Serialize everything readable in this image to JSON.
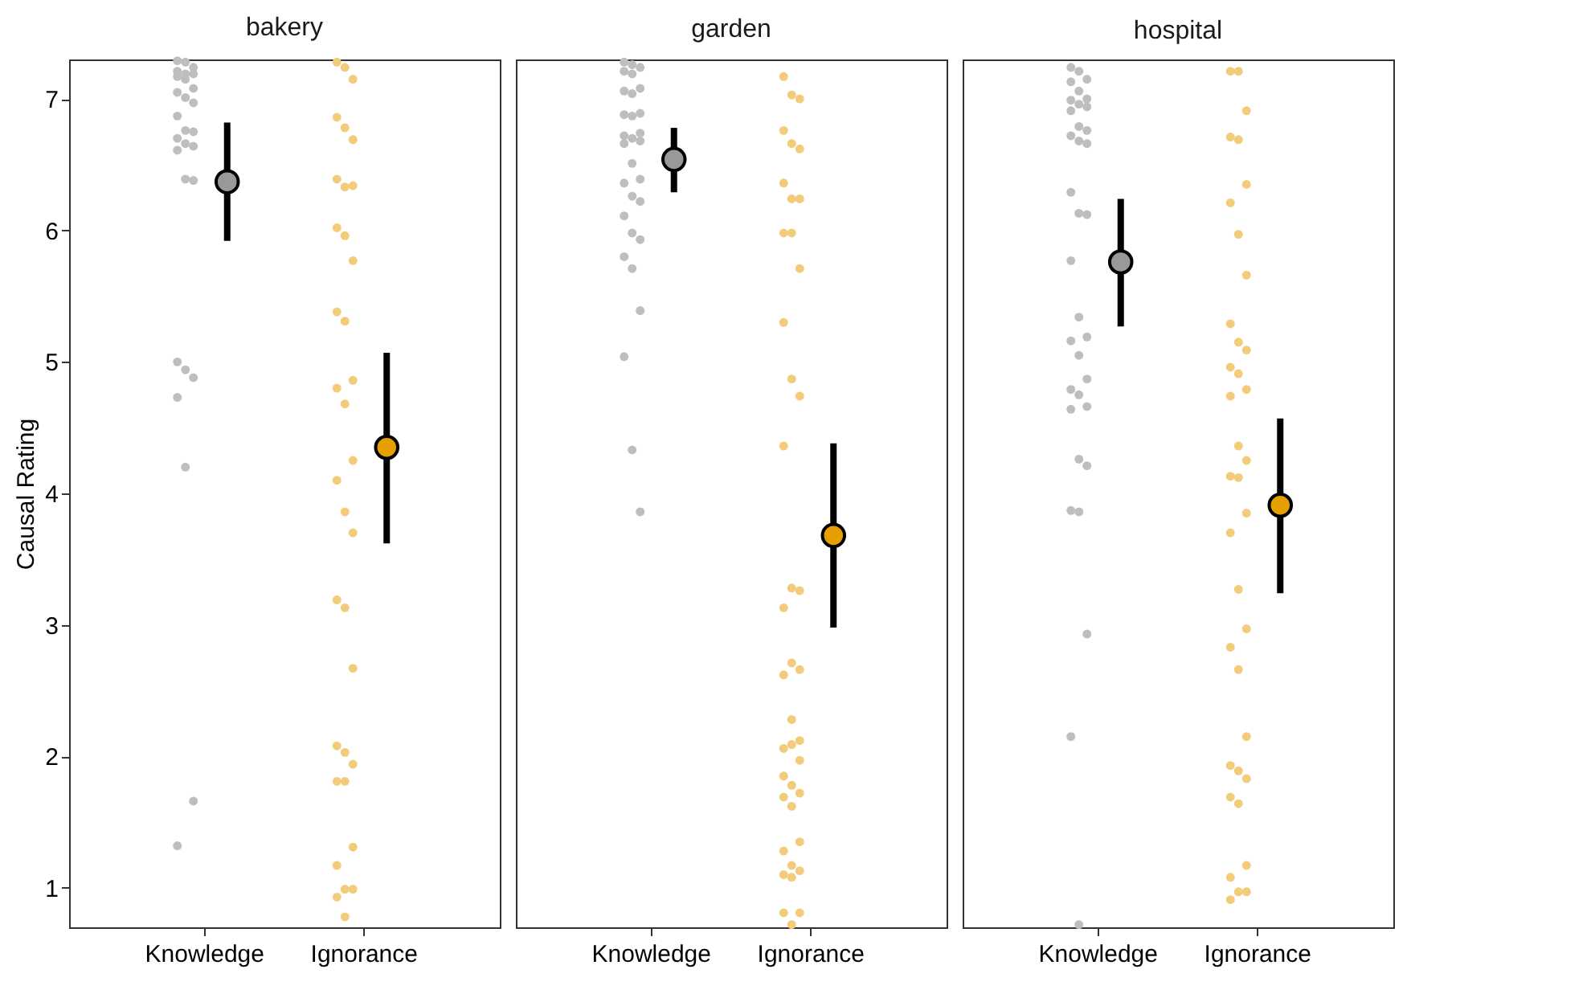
{
  "chart_data": [
    {
      "type": "scatter",
      "title": "bakery",
      "ylabel": "Causal Rating",
      "categories": [
        "Knowledge",
        "Ignorance"
      ],
      "ylim": [
        0.7,
        7.3
      ],
      "yticks": [
        1,
        2,
        3,
        4,
        5,
        6,
        7
      ],
      "grid": false,
      "marker": "circle",
      "series": [
        {
          "color": "#bebebe",
          "x": [
            "Knowledge",
            "Knowledge",
            "Knowledge",
            "Knowledge",
            "Knowledge",
            "Knowledge",
            "Knowledge",
            "Knowledge",
            "Knowledge",
            "Knowledge",
            "Knowledge",
            "Knowledge",
            "Knowledge",
            "Knowledge",
            "Knowledge",
            "Knowledge",
            "Knowledge",
            "Knowledge",
            "Knowledge",
            "Knowledge",
            "Knowledge",
            "Knowledge",
            "Knowledge",
            "Knowledge",
            "Knowledge",
            "Knowledge",
            "Knowledge",
            "Knowledge"
          ],
          "values": [
            7.29,
            7.28,
            7.24,
            7.21,
            7.19,
            7.19,
            7.17,
            7.15,
            7.08,
            7.05,
            7.01,
            6.97,
            6.87,
            6.76,
            6.75,
            6.7,
            6.66,
            6.64,
            6.61,
            6.39,
            6.38,
            5.0,
            4.94,
            4.88,
            4.73,
            4.2,
            1.66,
            1.32
          ]
        },
        {
          "color": "#f2cc7a",
          "x": [
            "Ignorance",
            "Ignorance",
            "Ignorance",
            "Ignorance",
            "Ignorance",
            "Ignorance",
            "Ignorance",
            "Ignorance",
            "Ignorance",
            "Ignorance",
            "Ignorance",
            "Ignorance",
            "Ignorance",
            "Ignorance",
            "Ignorance",
            "Ignorance",
            "Ignorance",
            "Ignorance",
            "Ignorance",
            "Ignorance",
            "Ignorance",
            "Ignorance",
            "Ignorance",
            "Ignorance",
            "Ignorance",
            "Ignorance",
            "Ignorance",
            "Ignorance",
            "Ignorance",
            "Ignorance",
            "Ignorance",
            "Ignorance",
            "Ignorance",
            "Ignorance",
            "Ignorance"
          ],
          "values": [
            7.28,
            7.24,
            7.15,
            6.86,
            6.78,
            6.69,
            6.39,
            6.33,
            6.34,
            6.02,
            5.96,
            5.77,
            5.38,
            5.31,
            4.86,
            4.8,
            4.68,
            4.25,
            4.1,
            3.86,
            3.7,
            3.19,
            3.13,
            2.67,
            2.08,
            2.03,
            1.94,
            1.81,
            1.81,
            1.31,
            1.17,
            0.99,
            0.99,
            0.93,
            0.78
          ]
        },
        {
          "color": "#999999",
          "x": [
            "Knowledge"
          ],
          "values": [
            6.37
          ],
          "errors": [
            [
              5.92,
              6.82
            ]
          ]
        },
        {
          "color": "#e69f00",
          "x": [
            "Ignorance"
          ],
          "values": [
            4.35
          ],
          "errors": [
            [
              3.62,
              5.07
            ]
          ]
        }
      ]
    },
    {
      "type": "scatter",
      "title": "garden",
      "categories": [
        "Knowledge",
        "Ignorance"
      ],
      "ylim": [
        0.7,
        7.3
      ],
      "yticks": [
        1,
        2,
        3,
        4,
        5,
        6,
        7
      ],
      "tick_labels": "x",
      "grid": false,
      "marker": "circle",
      "series": [
        {
          "color": "#bebebe",
          "x": [
            "Knowledge",
            "Knowledge",
            "Knowledge",
            "Knowledge",
            "Knowledge",
            "Knowledge",
            "Knowledge",
            "Knowledge",
            "Knowledge",
            "Knowledge",
            "Knowledge",
            "Knowledge",
            "Knowledge",
            "Knowledge",
            "Knowledge",
            "Knowledge",
            "Knowledge",
            "Knowledge",
            "Knowledge",
            "Knowledge",
            "Knowledge",
            "Knowledge",
            "Knowledge",
            "Knowledge",
            "Knowledge",
            "Knowledge",
            "Knowledge",
            "Knowledge",
            "Knowledge",
            "Knowledge"
          ],
          "values": [
            7.28,
            7.26,
            7.24,
            7.21,
            7.19,
            7.08,
            7.06,
            7.04,
            6.89,
            6.88,
            6.87,
            6.74,
            6.72,
            6.7,
            6.68,
            6.66,
            6.51,
            6.39,
            6.36,
            6.26,
            6.22,
            6.11,
            5.98,
            5.93,
            5.8,
            5.71,
            5.39,
            5.04,
            4.33,
            3.86
          ]
        },
        {
          "color": "#f2cc7a",
          "x": [
            "Ignorance",
            "Ignorance",
            "Ignorance",
            "Ignorance",
            "Ignorance",
            "Ignorance",
            "Ignorance",
            "Ignorance",
            "Ignorance",
            "Ignorance",
            "Ignorance",
            "Ignorance",
            "Ignorance",
            "Ignorance",
            "Ignorance",
            "Ignorance",
            "Ignorance",
            "Ignorance",
            "Ignorance",
            "Ignorance",
            "Ignorance",
            "Ignorance",
            "Ignorance",
            "Ignorance",
            "Ignorance",
            "Ignorance",
            "Ignorance",
            "Ignorance",
            "Ignorance",
            "Ignorance",
            "Ignorance",
            "Ignorance",
            "Ignorance",
            "Ignorance",
            "Ignorance",
            "Ignorance",
            "Ignorance",
            "Ignorance",
            "Ignorance",
            "Ignorance",
            "Ignorance"
          ],
          "values": [
            7.17,
            7.03,
            7.0,
            6.76,
            6.66,
            6.62,
            6.36,
            6.24,
            6.24,
            5.98,
            5.98,
            5.71,
            5.3,
            4.87,
            4.74,
            4.36,
            3.28,
            3.26,
            3.13,
            2.71,
            2.66,
            2.62,
            2.28,
            2.12,
            2.06,
            2.09,
            1.97,
            1.85,
            1.78,
            1.72,
            1.69,
            1.62,
            1.35,
            1.28,
            1.17,
            1.13,
            1.1,
            1.08,
            0.81,
            0.81,
            0.72
          ]
        },
        {
          "color": "#999999",
          "x": [
            "Knowledge"
          ],
          "values": [
            6.54
          ],
          "errors": [
            [
              6.29,
              6.78
            ]
          ]
        },
        {
          "color": "#e69f00",
          "x": [
            "Ignorance"
          ],
          "values": [
            3.68
          ],
          "errors": [
            [
              2.98,
              4.38
            ]
          ]
        }
      ]
    },
    {
      "type": "scatter",
      "title": "hospital",
      "categories": [
        "Knowledge",
        "Ignorance"
      ],
      "ylim": [
        0.7,
        7.3
      ],
      "yticks": [
        1,
        2,
        3,
        4,
        5,
        6,
        7
      ],
      "tick_labels": "x",
      "grid": false,
      "marker": "circle",
      "series": [
        {
          "color": "#bebebe",
          "x": [
            "Knowledge",
            "Knowledge",
            "Knowledge",
            "Knowledge",
            "Knowledge",
            "Knowledge",
            "Knowledge",
            "Knowledge",
            "Knowledge",
            "Knowledge",
            "Knowledge",
            "Knowledge",
            "Knowledge",
            "Knowledge",
            "Knowledge",
            "Knowledge",
            "Knowledge",
            "Knowledge",
            "Knowledge",
            "Knowledge",
            "Knowledge",
            "Knowledge",
            "Knowledge",
            "Knowledge",
            "Knowledge",
            "Knowledge",
            "Knowledge",
            "Knowledge",
            "Knowledge",
            "Knowledge",
            "Knowledge",
            "Knowledge",
            "Knowledge",
            "Knowledge",
            "Knowledge"
          ],
          "values": [
            7.24,
            7.21,
            7.15,
            7.13,
            7.06,
            7.0,
            6.99,
            6.96,
            6.94,
            6.91,
            6.79,
            6.76,
            6.72,
            6.68,
            6.66,
            6.29,
            6.13,
            6.12,
            5.77,
            5.34,
            5.19,
            5.16,
            5.05,
            4.87,
            4.79,
            4.75,
            4.66,
            4.64,
            4.26,
            4.21,
            3.87,
            3.86,
            2.93,
            2.15,
            0.72
          ]
        },
        {
          "color": "#f2cc7a",
          "x": [
            "Ignorance",
            "Ignorance",
            "Ignorance",
            "Ignorance",
            "Ignorance",
            "Ignorance",
            "Ignorance",
            "Ignorance",
            "Ignorance",
            "Ignorance",
            "Ignorance",
            "Ignorance",
            "Ignorance",
            "Ignorance",
            "Ignorance",
            "Ignorance",
            "Ignorance",
            "Ignorance",
            "Ignorance",
            "Ignorance",
            "Ignorance",
            "Ignorance",
            "Ignorance",
            "Ignorance",
            "Ignorance",
            "Ignorance",
            "Ignorance",
            "Ignorance",
            "Ignorance",
            "Ignorance",
            "Ignorance",
            "Ignorance",
            "Ignorance",
            "Ignorance",
            "Ignorance",
            "Ignorance",
            "Ignorance"
          ],
          "values": [
            7.21,
            7.21,
            6.91,
            6.71,
            6.69,
            6.35,
            6.21,
            5.97,
            5.66,
            5.29,
            5.15,
            5.09,
            4.96,
            4.91,
            4.79,
            4.74,
            4.36,
            4.25,
            4.13,
            4.12,
            3.85,
            3.7,
            3.27,
            2.97,
            2.83,
            2.66,
            2.15,
            1.93,
            1.89,
            1.83,
            1.69,
            1.64,
            1.17,
            1.08,
            0.97,
            0.97,
            0.91
          ]
        },
        {
          "color": "#999999",
          "x": [
            "Knowledge"
          ],
          "values": [
            5.76
          ],
          "errors": [
            [
              5.27,
              6.24
            ]
          ]
        },
        {
          "color": "#e69f00",
          "x": [
            "Ignorance"
          ],
          "values": [
            3.91
          ],
          "errors": [
            [
              3.24,
              4.57
            ]
          ]
        }
      ]
    }
  ]
}
